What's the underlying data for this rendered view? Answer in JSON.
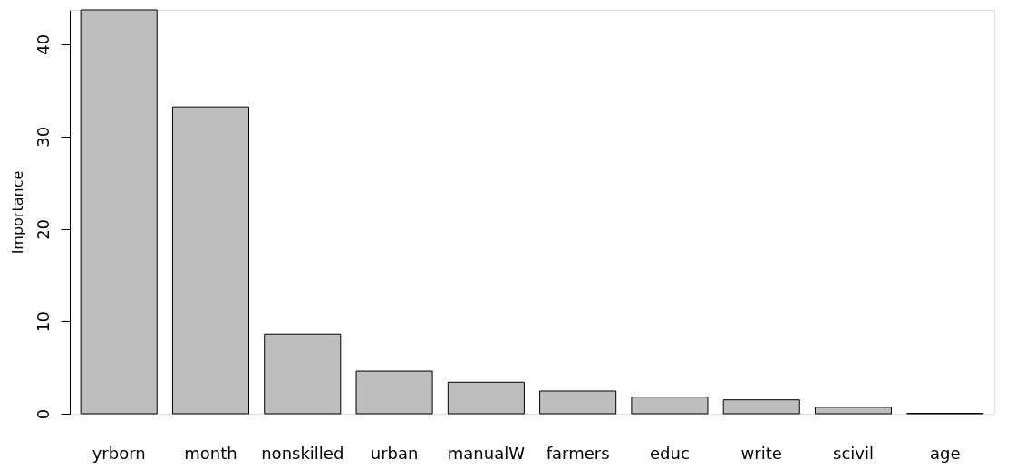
{
  "chart_data": {
    "type": "bar",
    "ylabel": "Importance",
    "categories": [
      "yrborn",
      "month",
      "nonskilled",
      "urban",
      "manualW",
      "farmers",
      "educ",
      "write",
      "scivil",
      "age"
    ],
    "values": [
      43.7,
      33.2,
      8.6,
      4.6,
      3.4,
      2.45,
      1.8,
      1.5,
      0.7,
      0.05
    ],
    "color": "#bebebe",
    "ylim": [
      0,
      43.7
    ],
    "yticks": [
      0,
      10,
      20,
      30,
      40
    ],
    "grid": false
  }
}
